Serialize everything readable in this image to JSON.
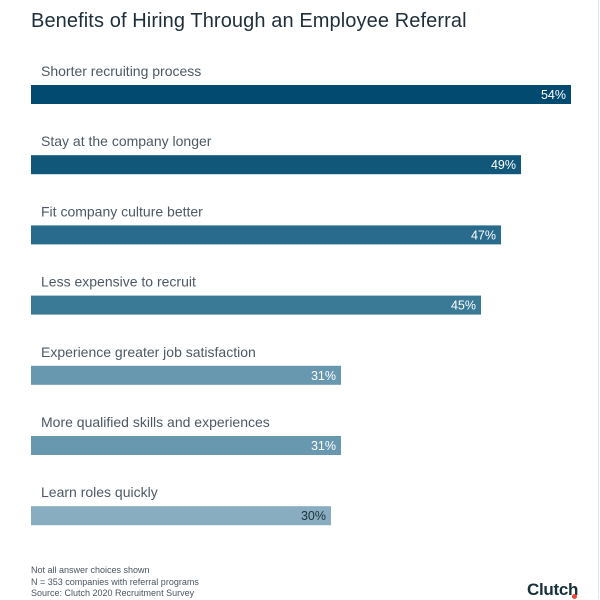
{
  "header": {
    "title": "Benefits of Hiring Through an Employee Referral"
  },
  "chart_data": {
    "type": "bar",
    "orientation": "horizontal",
    "title": "Benefits of Hiring Through an Employee Referral",
    "xlabel": "",
    "ylabel": "",
    "xlim": [
      0,
      54
    ],
    "grid": false,
    "categories": [
      "Shorter recruiting process",
      "Stay at the company longer",
      "Fit company culture better",
      "Less expensive to recruit",
      "Experience greater job satisfaction",
      "More qualified skills and experiences",
      "Learn roles quickly"
    ],
    "values": [
      54,
      49,
      47,
      45,
      31,
      31,
      30
    ],
    "value_labels": [
      "54%",
      "49%",
      "47%",
      "45%",
      "31%",
      "31%",
      "30%"
    ],
    "bar_colors": [
      "#034a70",
      "#11577a",
      "#286b8d",
      "#3a7a97",
      "#6898b0",
      "#6898b0",
      "#88adc0"
    ],
    "label_colors": [
      "#ffffff",
      "#ffffff",
      "#ffffff",
      "#ffffff",
      "#ffffff",
      "#ffffff",
      "#1f2f3a"
    ]
  },
  "footer": {
    "notes": [
      "Not all answer choices shown",
      "N = 353 companies with referral programs",
      "Source: Clutch 2020 Recruitment Survey"
    ],
    "brand": "Clutch",
    "brand_dot_color": "#ef4335"
  }
}
